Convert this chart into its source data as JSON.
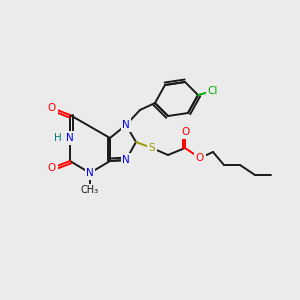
{
  "bg_color": "#ebebeb",
  "bond_color": "#1a1a1a",
  "colors": {
    "N": "#0000ff",
    "O": "#ff0000",
    "S": "#999900",
    "Cl": "#00aa00",
    "H": "#008080",
    "C": "#1a1a1a"
  },
  "font_size": 7.5,
  "lw": 1.4
}
